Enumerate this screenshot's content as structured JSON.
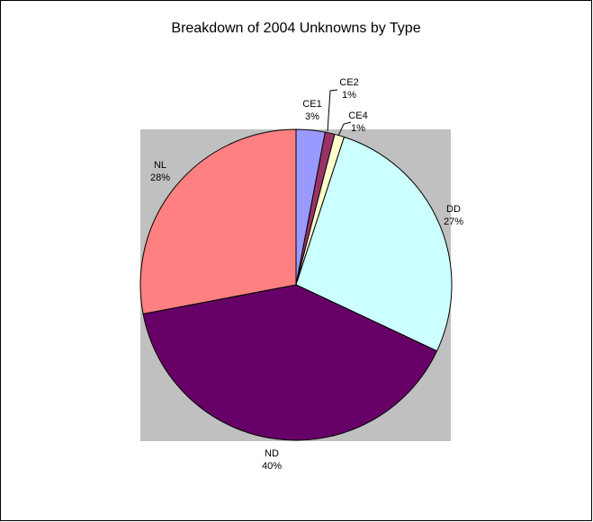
{
  "chart_data": {
    "type": "pie",
    "title": "Breakdown of 2004 Unknowns by Type",
    "categories": [
      "CE1",
      "CE2",
      "CE4",
      "DD",
      "ND",
      "NL"
    ],
    "values": [
      3,
      1,
      1,
      27,
      40,
      28
    ],
    "value_labels": [
      "3%",
      "1%",
      "1%",
      "27%",
      "40%",
      "28%"
    ],
    "colors": [
      "#9999ff",
      "#993366",
      "#ffffcc",
      "#ccffff",
      "#660066",
      "#ff8080"
    ]
  }
}
